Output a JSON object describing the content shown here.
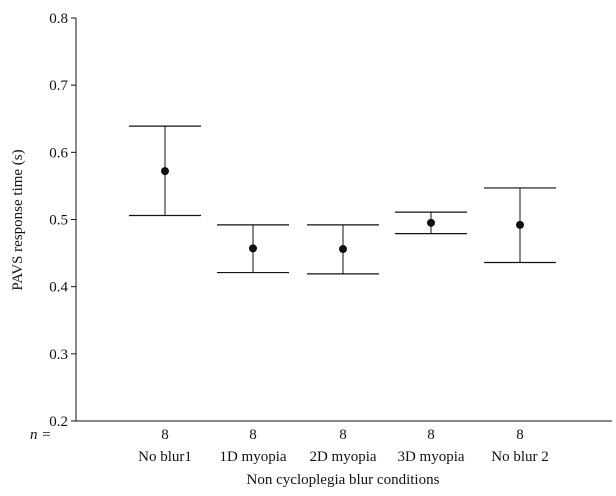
{
  "chart_data": {
    "type": "scatter",
    "title": "",
    "xlabel": "Non cycloplegia blur conditions",
    "ylabel": "PAVS response time (s)",
    "ylim": [
      0.2,
      0.8
    ],
    "yticks": [
      "0.2",
      "0.3",
      "0.4",
      "0.5",
      "0.6",
      "0.7",
      "0.8"
    ],
    "categories": [
      "No blur1",
      "1D myopia",
      "2D myopia",
      "3D myopia",
      "No blur 2"
    ],
    "n_label": "n =",
    "n_values": [
      "8",
      "8",
      "8",
      "8",
      "8"
    ],
    "series": [
      {
        "mean": [
          0.572,
          0.457,
          0.456,
          0.495,
          0.492
        ],
        "upper": [
          0.639,
          0.492,
          0.492,
          0.511,
          0.547
        ],
        "lower": [
          0.506,
          0.421,
          0.419,
          0.479,
          0.436
        ]
      }
    ],
    "grid": false,
    "legend": "none"
  }
}
